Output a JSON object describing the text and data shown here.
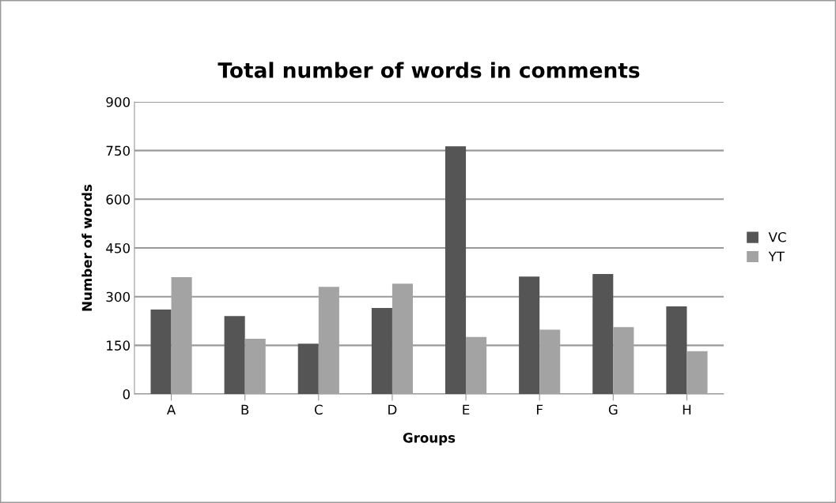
{
  "chart_data": {
    "type": "bar",
    "title": "Total number of words in comments",
    "xlabel": "Groups",
    "ylabel": "Number of words",
    "categories": [
      "A",
      "B",
      "C",
      "D",
      "E",
      "F",
      "G",
      "H"
    ],
    "series": [
      {
        "name": "VC",
        "color": "#555555",
        "values": [
          260,
          240,
          155,
          265,
          763,
          362,
          370,
          270
        ]
      },
      {
        "name": "YT",
        "color": "#a3a3a3",
        "values": [
          360,
          170,
          330,
          340,
          176,
          198,
          206,
          132
        ]
      }
    ],
    "ylim": [
      0,
      900
    ],
    "yticks": [
      0,
      150,
      300,
      450,
      600,
      750,
      900
    ],
    "grid": "y",
    "legend": "right"
  }
}
